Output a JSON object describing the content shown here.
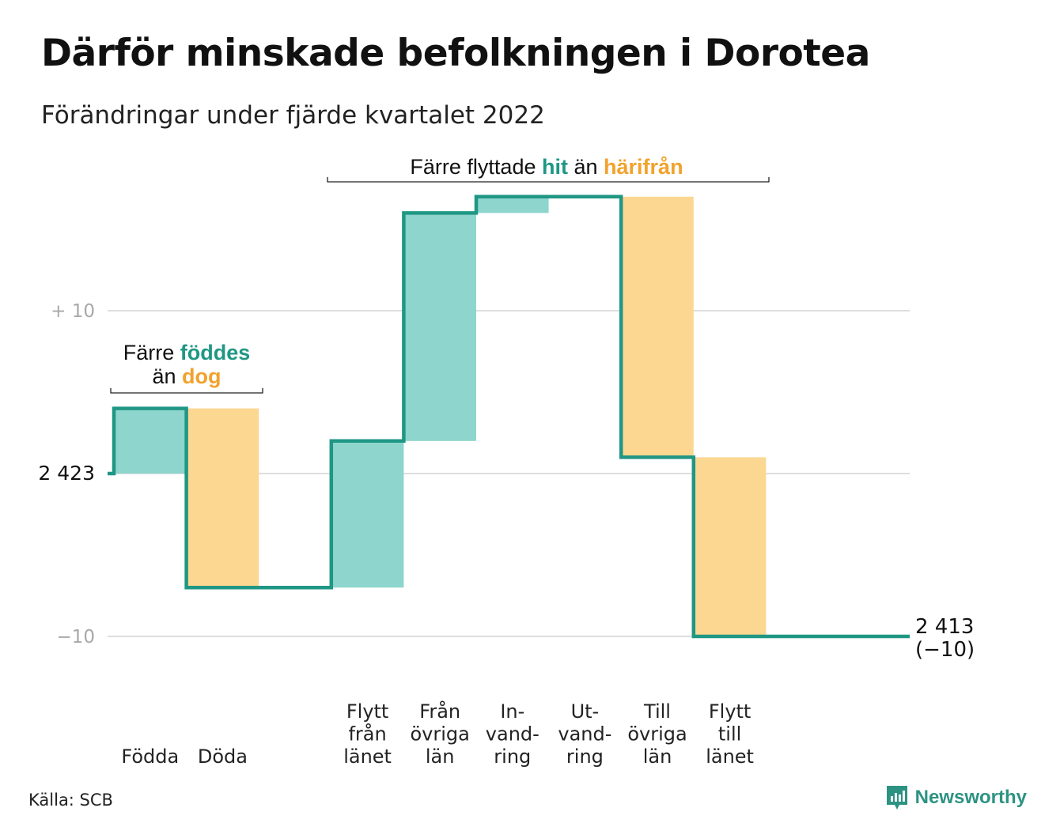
{
  "title": "Därför minskade befolkningen i Dorotea",
  "subtitle": "Förändringar under fjärde kvartalet 2022",
  "source": "Källa: SCB",
  "brand": "Newsworthy",
  "colors": {
    "increase": "#8dd5cd",
    "decrease": "#fbd792",
    "line": "#1f9784",
    "highlight_increase": "#1f9784",
    "highlight_decrease": "#f2a22c",
    "grid": "#dedede"
  },
  "annotations": {
    "births": {
      "line1_prefix": "Färre ",
      "line1_highlight": "föddes",
      "line2_prefix": "än ",
      "line2_highlight": "dog"
    },
    "migration": {
      "prefix": "Färre flyttade ",
      "highlight1": "hit",
      "middle": " än ",
      "highlight2": "härifrån"
    }
  },
  "chart_data": {
    "type": "waterfall",
    "start_label": "2 423",
    "end_label_line1": "2 413",
    "end_label_line2": "(−10)",
    "y_ticks": [
      {
        "value": 10,
        "label": "+ 10"
      },
      {
        "value": 0,
        "label": ""
      },
      {
        "value": -10,
        "label": "−10"
      }
    ],
    "ylim": [
      -10,
      17
    ],
    "steps": [
      {
        "label": [
          "Födda"
        ],
        "change": 4,
        "direction": "increase"
      },
      {
        "label": [
          "Döda"
        ],
        "change": -11,
        "direction": "decrease"
      },
      {
        "label": [],
        "change": 0,
        "direction": "none"
      },
      {
        "label": [
          "Flytt",
          "från",
          "länet"
        ],
        "change": 9,
        "direction": "increase"
      },
      {
        "label": [
          "Från",
          "övriga",
          "län"
        ],
        "change": 14,
        "direction": "increase"
      },
      {
        "label": [
          "In-",
          "vand-",
          "ring"
        ],
        "change": 1,
        "direction": "increase"
      },
      {
        "label": [
          "Ut-",
          "vand-",
          "ring"
        ],
        "change": 0,
        "direction": "decrease"
      },
      {
        "label": [
          "Till",
          "övriga",
          "län"
        ],
        "change": -16,
        "direction": "decrease"
      },
      {
        "label": [
          "Flytt",
          "till",
          "länet"
        ],
        "change": -11,
        "direction": "decrease"
      },
      {
        "label": [],
        "change": 0,
        "direction": "none"
      },
      {
        "label": [],
        "change": 0,
        "direction": "none"
      }
    ]
  }
}
